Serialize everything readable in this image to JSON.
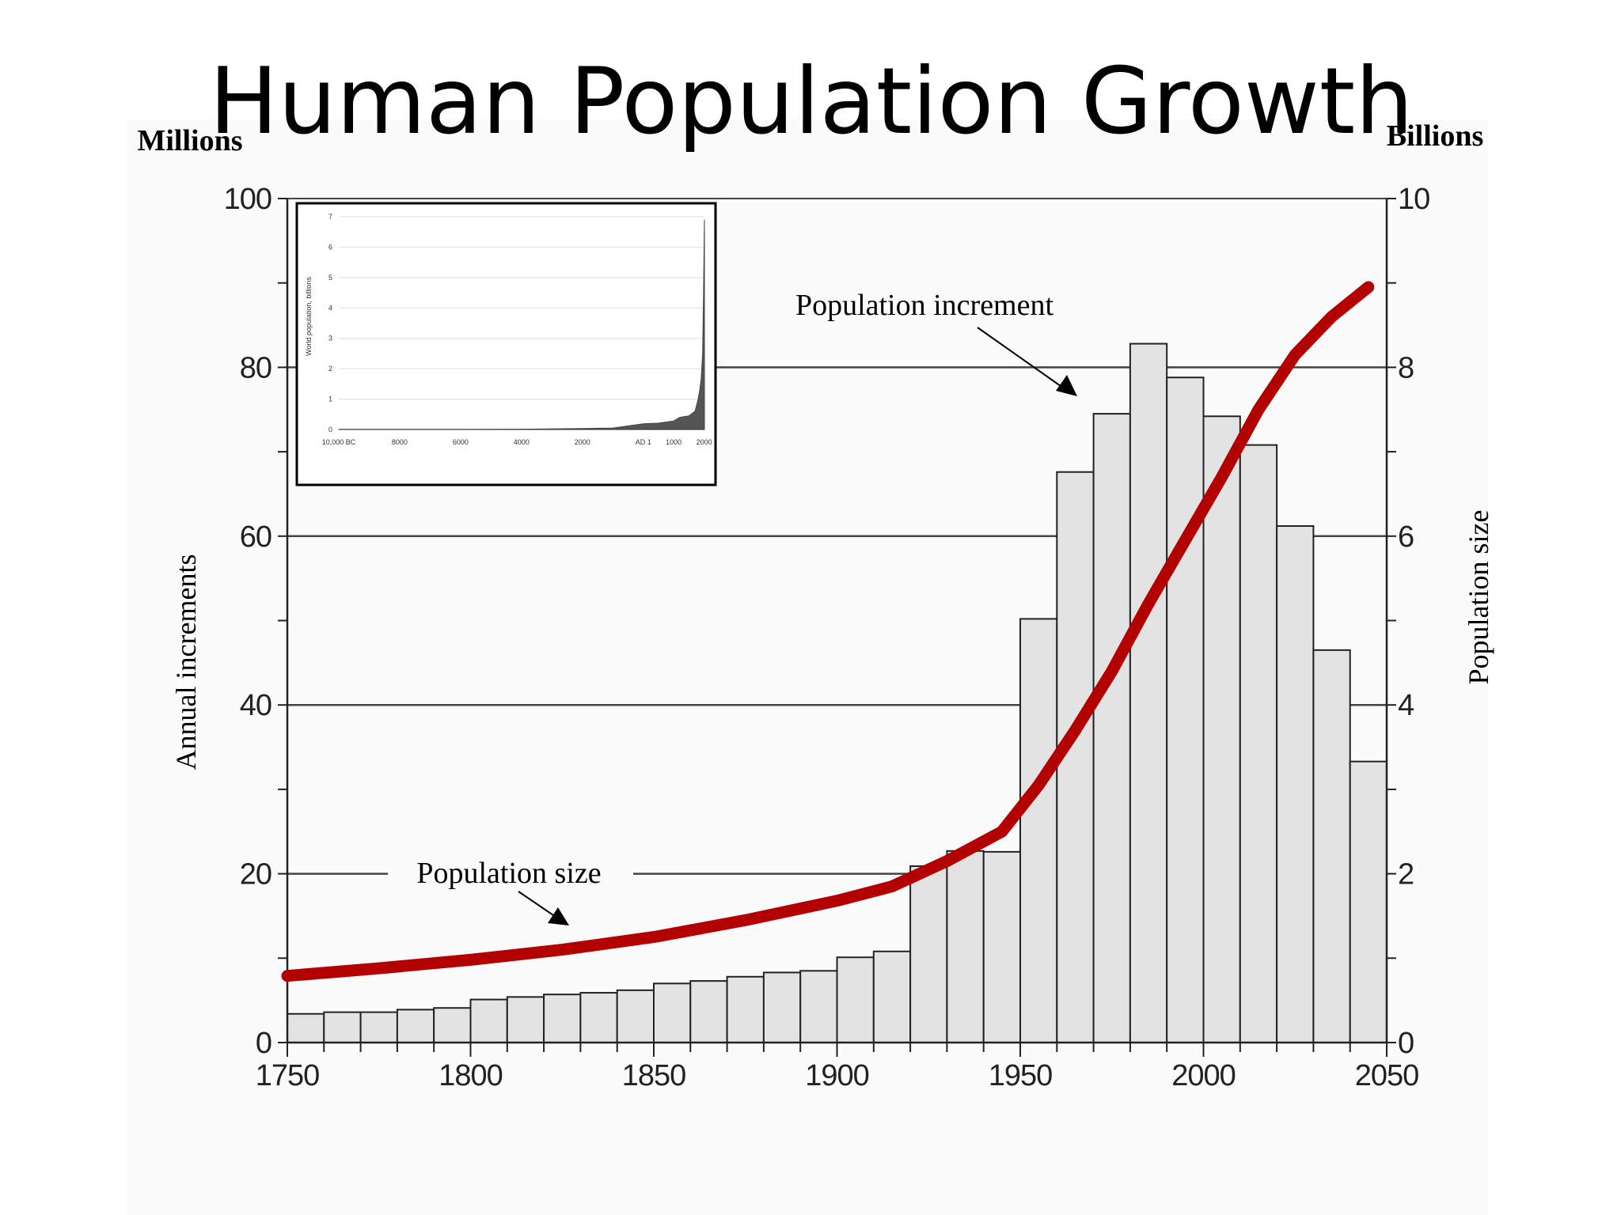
{
  "slide": {
    "title": "Human Population Growth"
  },
  "colors": {
    "line": "#b30000",
    "bar_fill": "#e3e3e3",
    "bar_stroke": "#222222",
    "grid": "#444444"
  },
  "chart_data": [
    {
      "type": "bar",
      "title": "",
      "left_axis": {
        "unit_label": "Millions",
        "label": "Annual increments",
        "ylim": [
          0,
          100
        ],
        "ticks": [
          0,
          20,
          40,
          60,
          80,
          100
        ]
      },
      "right_axis": {
        "unit_label": "Billions",
        "label": "Population size",
        "ylim": [
          0,
          10
        ],
        "ticks": [
          0,
          2,
          4,
          6,
          8,
          10
        ]
      },
      "x_axis": {
        "xlim": [
          1750,
          2050
        ],
        "ticks": [
          1750,
          1800,
          1850,
          1900,
          1950,
          2000,
          2050
        ]
      },
      "grid": true,
      "series": [
        {
          "name": "Population increment",
          "type": "bar",
          "bin_width": 10,
          "x": [
            1750,
            1760,
            1770,
            1780,
            1790,
            1800,
            1810,
            1820,
            1830,
            1840,
            1850,
            1860,
            1870,
            1880,
            1890,
            1900,
            1910,
            1920,
            1930,
            1940,
            1950,
            1960,
            1970,
            1980,
            1990,
            2000,
            2010,
            2020,
            2030,
            2040
          ],
          "values": [
            3.4,
            3.6,
            3.6,
            3.9,
            4.1,
            5.1,
            5.4,
            5.7,
            5.9,
            6.2,
            7.0,
            7.3,
            7.8,
            8.3,
            8.5,
            10.1,
            10.8,
            20.9,
            22.7,
            22.6,
            50.2,
            67.6,
            74.5,
            82.8,
            78.8,
            74.2,
            70.8,
            61.2,
            46.5,
            33.3
          ]
        },
        {
          "name": "Population size",
          "type": "line",
          "x": [
            1750,
            1775,
            1800,
            1825,
            1850,
            1875,
            1900,
            1915,
            1930,
            1945,
            1955,
            1965,
            1975,
            1985,
            1995,
            2005,
            2015,
            2025,
            2035,
            2045
          ],
          "values": [
            0.79,
            0.88,
            0.98,
            1.1,
            1.25,
            1.45,
            1.68,
            1.85,
            2.15,
            2.5,
            3.05,
            3.7,
            4.4,
            5.2,
            5.95,
            6.7,
            7.5,
            8.15,
            8.6,
            8.95
          ]
        }
      ],
      "annotations": [
        "Population increment",
        "Population size"
      ]
    },
    {
      "type": "area",
      "title": "",
      "ylabel": "World population, billions",
      "ylim": [
        0,
        7
      ],
      "yticks": [
        "0",
        "1",
        "2",
        "3",
        "4",
        "5",
        "6",
        "7"
      ],
      "xticks": [
        "10,000 BC",
        "8000",
        "6000",
        "4000",
        "2000",
        "AD 1",
        "1000",
        "2000"
      ],
      "grid": true,
      "series": [
        {
          "x": [
            -10000,
            -8000,
            -6000,
            -4000,
            -2000,
            -1000,
            1,
            500,
            1000,
            1200,
            1500,
            1700,
            1800,
            1850,
            1900,
            1950,
            1980,
            2000,
            2010
          ],
          "values": [
            0.004,
            0.005,
            0.007,
            0.01,
            0.03,
            0.05,
            0.19,
            0.21,
            0.28,
            0.4,
            0.45,
            0.6,
            0.98,
            1.26,
            1.65,
            2.5,
            4.4,
            6.1,
            6.9
          ]
        }
      ]
    }
  ]
}
